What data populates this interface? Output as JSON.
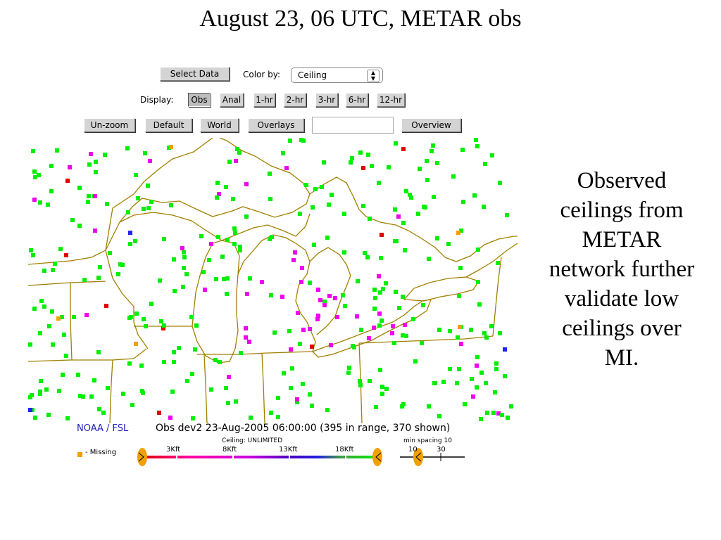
{
  "slide": {
    "title": "August 23, 06 UTC, METAR obs",
    "side_text": [
      "Observed",
      "ceilings from",
      "METAR",
      "network further",
      "validate low",
      "ceilings over",
      "MI."
    ]
  },
  "toolbar": {
    "select_data_label": "Select Data",
    "color_by_label": "Color by:",
    "color_by_value": "Ceiling",
    "display_label": "Display:",
    "display_buttons": [
      "Obs",
      "Anal",
      "1-hr",
      "2-hr",
      "3-hr",
      "6-hr",
      "12-hr"
    ],
    "display_selected": "Obs",
    "unzoom_label": "Un-zoom",
    "default_label": "Default",
    "world_label": "World",
    "overlays_label": "Overlays",
    "overview_label": "Overview",
    "text_value": ""
  },
  "status": {
    "credit": "NOAA / FSL",
    "info": "Obs dev2 23-Aug-2005 06:00:00 (395 in range, 370 shown)",
    "ceiling_label": "Ceiling:  UNLIMITED",
    "spacing_label": "min spacing 10",
    "missing_label": "- Missing",
    "scale_ticks": [
      "3Kft",
      "8Kft",
      "13Kft",
      "18Kft"
    ],
    "spacing_ticks": [
      "10",
      "30"
    ]
  },
  "colors": {
    "ceiling_green": "#00ee00",
    "ceiling_magenta": "#ee00ee",
    "ceiling_red": "#e00000",
    "ceiling_blue": "#2222ee",
    "missing_orange": "#f0a000",
    "map_lines": "#a08000",
    "credit_blue": "#2020c0"
  }
}
